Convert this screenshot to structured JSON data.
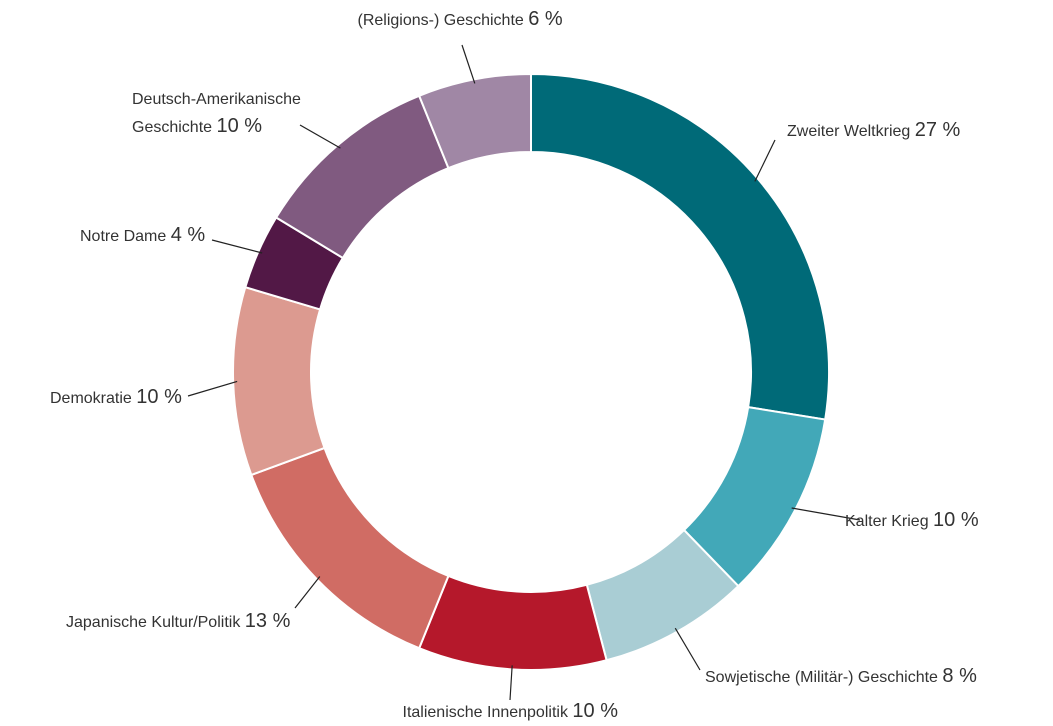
{
  "chart_data": {
    "type": "donut",
    "categories": [
      "Zweiter Weltkrieg",
      "Kalter Krieg",
      "Sowjetische (Militär-) Geschichte",
      "Italienische Innenpolitik",
      "Japanische Kultur/Politik",
      "Demokratie",
      "Notre Dame",
      "Deutsch-Amerikanische Geschichte",
      "(Religions-) Geschichte"
    ],
    "values": [
      27,
      10,
      8,
      10,
      13,
      10,
      4,
      10,
      6
    ],
    "value_labels": [
      "27 %",
      "10 %",
      "8 %",
      "10 %",
      "13 %",
      "10 %",
      "4 %",
      "10 %",
      "6 %"
    ],
    "colors": [
      "#006a78",
      "#42a8b8",
      "#a9cdd4",
      "#b5182b",
      "#d06c64",
      "#dc9a90",
      "#521846",
      "#805a80",
      "#a087a5"
    ]
  }
}
